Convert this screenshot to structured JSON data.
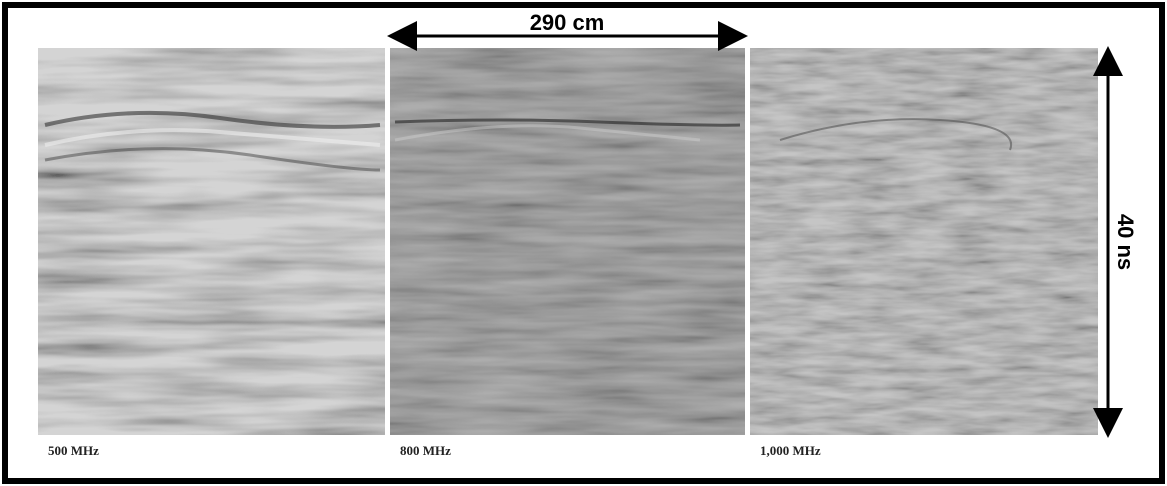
{
  "figure": {
    "width_label": "290 cm",
    "depth_label": "40 ns",
    "panels": [
      {
        "label": "500 MHz"
      },
      {
        "label": "800 MHz"
      },
      {
        "label": "1,000 MHz"
      }
    ]
  }
}
